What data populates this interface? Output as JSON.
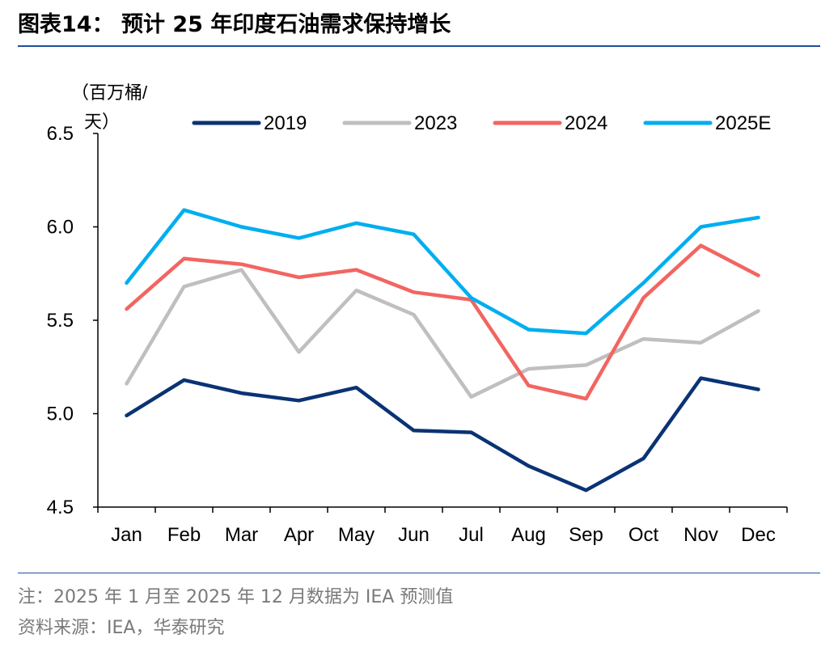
{
  "title": "图表14：  预计 25 年印度石油需求保持增长",
  "footnote": "注：2025 年 1 月至 2025 年 12 月数据为 IEA 预测值",
  "source": "资料来源：IEA，华泰研究",
  "chart_data": {
    "type": "line",
    "ylabel_line1": "（百万桶/",
    "ylabel_line2": "天）",
    "ylim": [
      4.5,
      6.5
    ],
    "yticks": [
      "4.5",
      "5.0",
      "5.5",
      "6.0",
      "6.5"
    ],
    "categories": [
      "Jan",
      "Feb",
      "Mar",
      "Apr",
      "May",
      "Jun",
      "Jul",
      "Aug",
      "Sep",
      "Oct",
      "Nov",
      "Dec"
    ],
    "legend_position": "top",
    "grid": false,
    "series": [
      {
        "name": "2019",
        "color": "#0a3374",
        "values": [
          4.99,
          5.18,
          5.11,
          5.07,
          5.14,
          4.91,
          4.9,
          4.72,
          4.59,
          4.76,
          5.19,
          5.13
        ]
      },
      {
        "name": "2023",
        "color": "#bfbfbf",
        "values": [
          5.16,
          5.68,
          5.77,
          5.33,
          5.66,
          5.53,
          5.09,
          5.24,
          5.26,
          5.4,
          5.38,
          5.55
        ]
      },
      {
        "name": "2024",
        "color": "#f26561",
        "values": [
          5.56,
          5.83,
          5.8,
          5.73,
          5.77,
          5.65,
          5.61,
          5.15,
          5.08,
          5.62,
          5.9,
          5.74
        ]
      },
      {
        "name": "2025E",
        "color": "#00aeef",
        "values": [
          5.7,
          6.09,
          6.0,
          5.94,
          6.02,
          5.96,
          5.62,
          5.45,
          5.43,
          5.7,
          6.0,
          6.05
        ]
      }
    ]
  }
}
